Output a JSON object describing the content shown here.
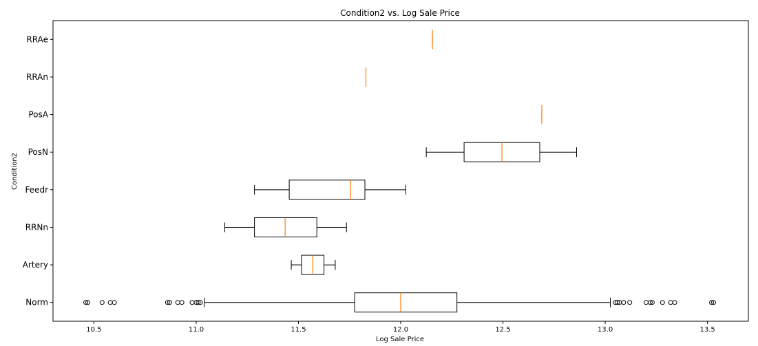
{
  "chart_data": {
    "type": "boxplot",
    "orientation": "horizontal",
    "title": "Condition2 vs. Log Sale Price",
    "xlabel": "Log Sale Price",
    "ylabel": "Condition2",
    "xlim": [
      10.3,
      13.7
    ],
    "xticks": [
      10.5,
      11.0,
      11.5,
      12.0,
      12.5,
      13.0,
      13.5
    ],
    "xtick_labels": [
      "10.5",
      "11.0",
      "11.5",
      "12.0",
      "12.5",
      "13.0",
      "13.5"
    ],
    "grid": false,
    "colors": {
      "box": "#000000",
      "median": "#ff7f0e"
    },
    "categories": [
      "Norm",
      "Artery",
      "RRNn",
      "Feedr",
      "PosN",
      "PosA",
      "RRAn",
      "RRAe"
    ],
    "series": [
      {
        "category": "Norm",
        "whislo": 11.04,
        "q1": 11.775,
        "med": 12.0,
        "q3": 12.275,
        "whishi": 13.025,
        "fliers": [
          10.46,
          10.47,
          10.54,
          10.58,
          10.6,
          10.86,
          10.87,
          10.91,
          10.93,
          10.98,
          11.0,
          11.01,
          11.02,
          13.05,
          13.06,
          13.07,
          13.09,
          13.12,
          13.2,
          13.22,
          13.23,
          13.28,
          13.32,
          13.34,
          13.52,
          13.53
        ]
      },
      {
        "category": "Artery",
        "whislo": 11.465,
        "q1": 11.515,
        "med": 11.57,
        "q3": 11.625,
        "whishi": 11.68,
        "fliers": []
      },
      {
        "category": "RRNn",
        "whislo": 11.14,
        "q1": 11.285,
        "med": 11.435,
        "q3": 11.59,
        "whishi": 11.735,
        "fliers": []
      },
      {
        "category": "Feedr",
        "whislo": 11.285,
        "q1": 11.455,
        "med": 11.755,
        "q3": 11.825,
        "whishi": 12.025,
        "fliers": []
      },
      {
        "category": "PosN",
        "whislo": 12.125,
        "q1": 12.31,
        "med": 12.495,
        "q3": 12.68,
        "whishi": 12.86,
        "fliers": []
      },
      {
        "category": "PosA",
        "whislo": 12.69,
        "q1": 12.69,
        "med": 12.69,
        "q3": 12.69,
        "whishi": 12.69,
        "fliers": []
      },
      {
        "category": "RRAn",
        "whislo": 11.83,
        "q1": 11.83,
        "med": 11.83,
        "q3": 11.83,
        "whishi": 11.83,
        "fliers": []
      },
      {
        "category": "RRAe",
        "whislo": 12.155,
        "q1": 12.155,
        "med": 12.155,
        "q3": 12.155,
        "whishi": 12.155,
        "fliers": []
      }
    ]
  }
}
